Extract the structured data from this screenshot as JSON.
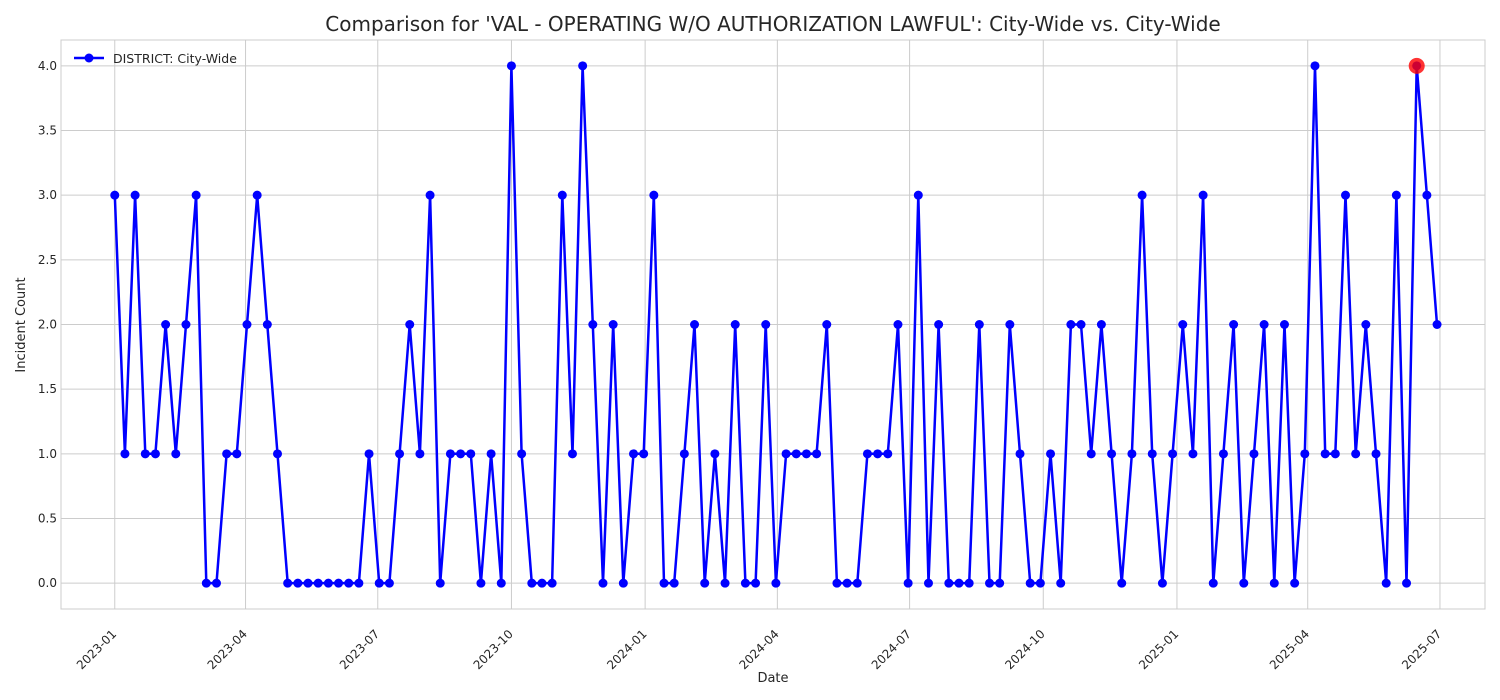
{
  "chart_data": {
    "type": "line",
    "title": "Comparison for 'VAL - OPERATING W/O AUTHORIZATION LAWFUL': City-Wide vs. City-Wide",
    "xlabel": "Date",
    "ylabel": "Incident Count",
    "x_range": [
      "2022-11-25",
      "2025-08-01"
    ],
    "ylim": [
      -0.2,
      4.2
    ],
    "x_ticks": [
      "2023-01",
      "2023-04",
      "2023-07",
      "2023-10",
      "2024-01",
      "2024-04",
      "2024-07",
      "2024-10",
      "2025-01",
      "2025-04",
      "2025-07"
    ],
    "y_ticks": [
      "0.0",
      "0.5",
      "1.0",
      "1.5",
      "2.0",
      "2.5",
      "3.0",
      "3.5",
      "4.0"
    ],
    "grid": true,
    "legend_position": "top-left",
    "series": [
      {
        "name": "DISTRICT: City-Wide",
        "color": "#0000ff",
        "x": [
          "2023-01-01",
          "2023-01-08",
          "2023-01-15",
          "2023-01-22",
          "2023-01-29",
          "2023-02-05",
          "2023-02-12",
          "2023-02-19",
          "2023-02-26",
          "2023-03-05",
          "2023-03-12",
          "2023-03-19",
          "2023-03-26",
          "2023-04-02",
          "2023-04-09",
          "2023-04-16",
          "2023-04-23",
          "2023-04-30",
          "2023-05-07",
          "2023-05-14",
          "2023-05-21",
          "2023-05-28",
          "2023-06-04",
          "2023-06-11",
          "2023-06-18",
          "2023-06-25",
          "2023-07-02",
          "2023-07-09",
          "2023-07-16",
          "2023-07-23",
          "2023-07-30",
          "2023-08-06",
          "2023-08-13",
          "2023-08-20",
          "2023-08-27",
          "2023-09-03",
          "2023-09-10",
          "2023-09-17",
          "2023-09-24",
          "2023-10-01",
          "2023-10-08",
          "2023-10-15",
          "2023-10-22",
          "2023-10-29",
          "2023-11-05",
          "2023-11-12",
          "2023-11-19",
          "2023-11-26",
          "2023-12-03",
          "2023-12-10",
          "2023-12-17",
          "2023-12-24",
          "2023-12-31",
          "2024-01-07",
          "2024-01-14",
          "2024-01-21",
          "2024-01-28",
          "2024-02-04",
          "2024-02-11",
          "2024-02-18",
          "2024-02-25",
          "2024-03-03",
          "2024-03-10",
          "2024-03-17",
          "2024-03-24",
          "2024-03-31",
          "2024-04-07",
          "2024-04-14",
          "2024-04-21",
          "2024-04-28",
          "2024-05-05",
          "2024-05-12",
          "2024-05-19",
          "2024-05-26",
          "2024-06-02",
          "2024-06-09",
          "2024-06-16",
          "2024-06-23",
          "2024-06-30",
          "2024-07-07",
          "2024-07-14",
          "2024-07-21",
          "2024-07-28",
          "2024-08-04",
          "2024-08-11",
          "2024-08-18",
          "2024-08-25",
          "2024-09-01",
          "2024-09-08",
          "2024-09-15",
          "2024-09-22",
          "2024-09-29",
          "2024-10-06",
          "2024-10-13",
          "2024-10-20",
          "2024-10-27",
          "2024-11-03",
          "2024-11-10",
          "2024-11-17",
          "2024-11-24",
          "2024-12-01",
          "2024-12-08",
          "2024-12-15",
          "2024-12-22",
          "2024-12-29",
          "2025-01-05",
          "2025-01-12",
          "2025-01-19",
          "2025-01-26",
          "2025-02-02",
          "2025-02-09",
          "2025-02-16",
          "2025-02-23",
          "2025-03-02",
          "2025-03-09",
          "2025-03-16",
          "2025-03-23",
          "2025-03-30",
          "2025-04-06",
          "2025-04-13",
          "2025-04-20",
          "2025-04-27",
          "2025-05-04",
          "2025-05-11",
          "2025-05-18",
          "2025-05-25",
          "2025-06-01",
          "2025-06-08",
          "2025-06-15",
          "2025-06-22",
          "2025-06-29"
        ],
        "y": [
          3,
          1,
          3,
          1,
          1,
          2,
          1,
          2,
          3,
          0,
          0,
          1,
          1,
          2,
          3,
          2,
          1,
          0,
          0,
          0,
          0,
          0,
          0,
          0,
          0,
          1,
          0,
          0,
          1,
          2,
          1,
          3,
          0,
          1,
          1,
          1,
          0,
          1,
          0,
          4,
          1,
          0,
          0,
          0,
          3,
          1,
          4,
          2,
          0,
          2,
          0,
          1,
          1,
          3,
          0,
          0,
          1,
          2,
          0,
          1,
          0,
          2,
          0,
          0,
          2,
          0,
          1,
          1,
          1,
          1,
          2,
          0,
          0,
          0,
          1,
          1,
          1,
          2,
          0,
          3,
          0,
          2,
          0,
          0,
          0,
          2,
          0,
          0,
          2,
          1,
          0,
          0,
          1,
          0,
          2,
          2,
          1,
          2,
          1,
          0,
          1,
          3,
          1,
          0,
          1,
          2,
          1,
          3,
          0,
          1,
          2,
          0,
          1,
          2,
          0,
          2,
          0,
          1,
          4,
          1,
          1,
          3,
          1,
          2,
          1,
          0,
          3,
          0,
          4,
          3,
          2
        ]
      }
    ],
    "highlight": {
      "x": "2025-06-15",
      "y": 4,
      "color": "#ff0000"
    }
  }
}
